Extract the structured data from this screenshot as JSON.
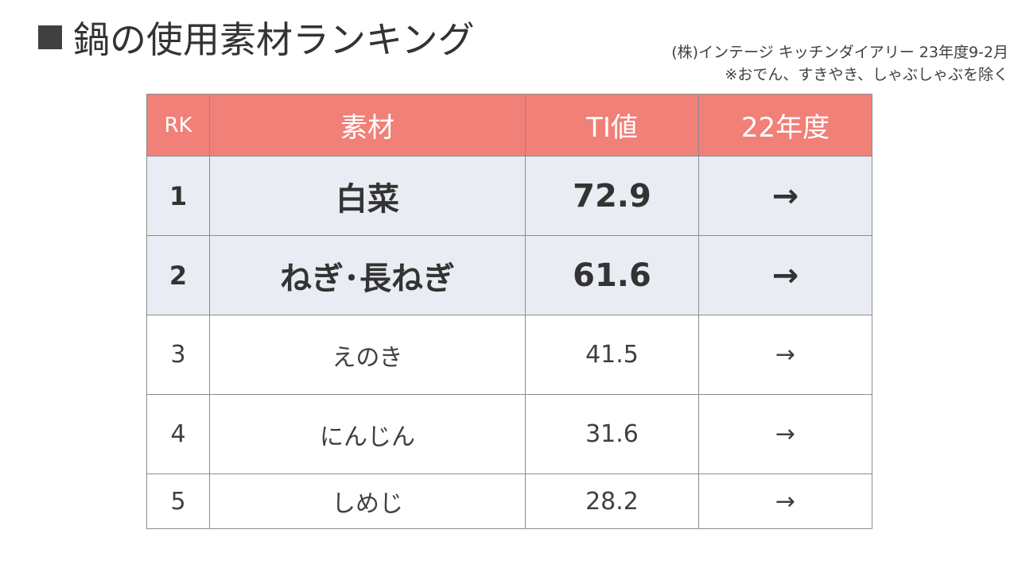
{
  "title": "鍋の使用素材ランキング",
  "source": {
    "line1": "(株)インテージ キッチンダイアリー 23年度9-2月",
    "line2": "※おでん、すきやき、しゃぶしゃぶを除く"
  },
  "colors": {
    "header_bg": "#f08078",
    "top_rows_bg": "#e9ecf2",
    "border": "#8c8c8c"
  },
  "chart_data": {
    "type": "table",
    "title": "鍋の使用素材ランキング",
    "columns": [
      "RK",
      "素材",
      "TI値",
      "22年度"
    ],
    "rows": [
      {
        "rank": "1",
        "material": "白菜",
        "ti": "72.9",
        "prev": "→"
      },
      {
        "rank": "2",
        "material": "ねぎ･長ねぎ",
        "ti": "61.6",
        "prev": "→"
      },
      {
        "rank": "3",
        "material": "えのき",
        "ti": "41.5",
        "prev": "→"
      },
      {
        "rank": "4",
        "material": "にんじん",
        "ti": "31.6",
        "prev": "→"
      },
      {
        "rank": "5",
        "material": "しめじ",
        "ti": "28.2",
        "prev": "→"
      }
    ]
  }
}
